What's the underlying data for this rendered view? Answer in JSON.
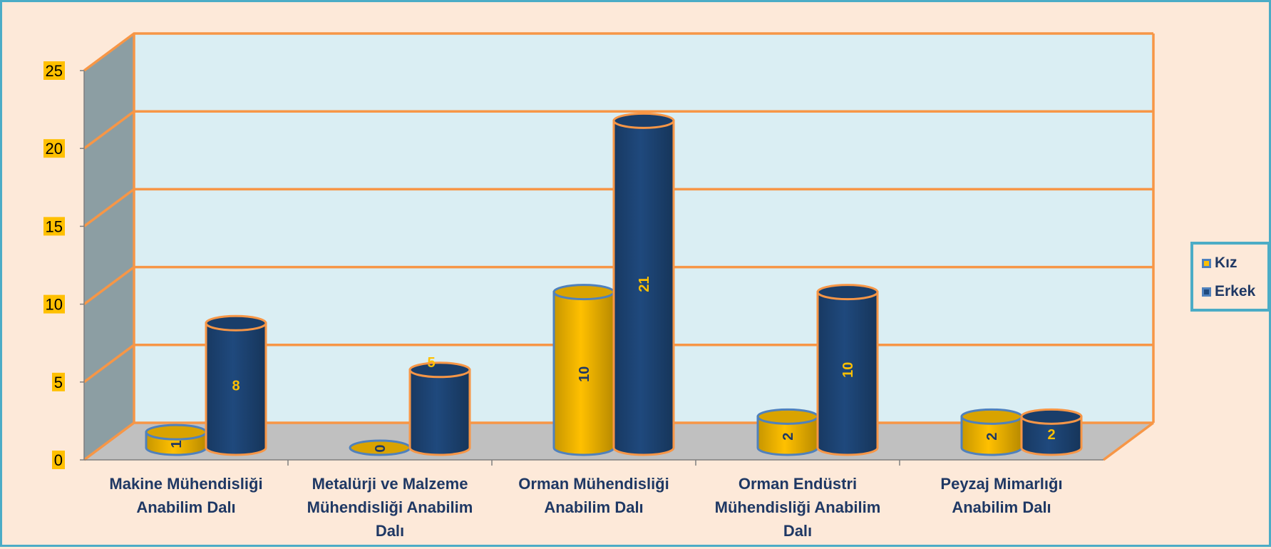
{
  "chart_data": {
    "type": "bar",
    "style": "3d-cylinder",
    "categories": [
      [
        "Makine Mühendisliği",
        "Anabilim Dalı"
      ],
      [
        "Metalürji ve Malzeme",
        "Mühendisliği Anabilim",
        "Dalı"
      ],
      [
        "Orman Mühendisliği",
        "Anabilim Dalı"
      ],
      [
        "Orman Endüstri",
        "Mühendisliği Anabilim",
        "Dalı"
      ],
      [
        "Peyzaj Mimarlığı",
        "Anabilim Dalı"
      ]
    ],
    "series": [
      {
        "name": "Kız",
        "values": [
          1,
          0,
          10,
          2,
          2
        ],
        "color": "#ffc000"
      },
      {
        "name": "Erkek",
        "values": [
          8,
          5,
          21,
          10,
          2
        ],
        "color": "#1f497d"
      }
    ],
    "ylim": [
      0,
      25
    ],
    "yticks": [
      "0",
      "5",
      "10",
      "15",
      "20",
      "25"
    ],
    "grid": true,
    "legend": "right",
    "colors": {
      "background": "#fde9d9",
      "frame": "#4bacc6",
      "wall": "#daeef3",
      "side_wall": "#8c9ea3",
      "floor": "#c0c0c0",
      "gridline": "#f79646",
      "tick_label_bg": "#ffc000",
      "category_text": "#1f3864",
      "kiz_label": "#1f3864",
      "erkek_label": "#ffc000"
    }
  }
}
